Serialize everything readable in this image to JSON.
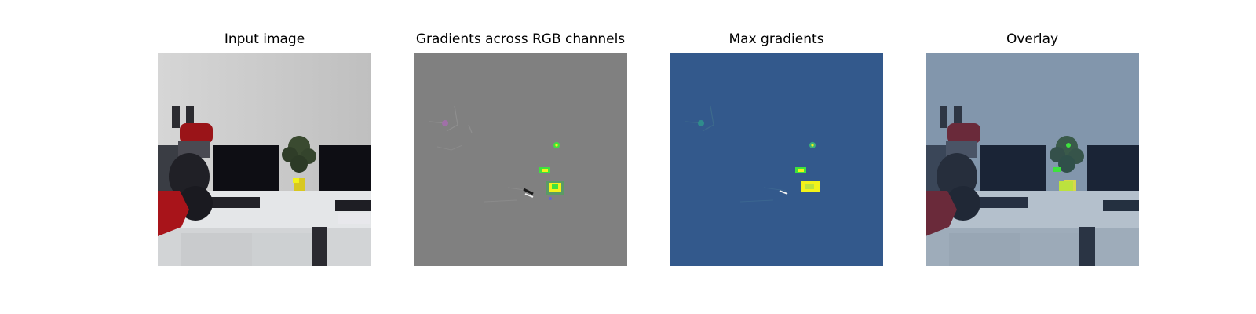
{
  "panels": [
    {
      "title": "Input image"
    },
    {
      "title": "Gradients across RGB channels"
    },
    {
      "title": "Max gradients"
    },
    {
      "title": "Overlay"
    }
  ],
  "colors": {
    "gradient_background": "#808080",
    "max_gradient_background": "#33598c",
    "highlight_yellow": "#f2f21a",
    "highlight_green": "#3ee23e",
    "robot_red": "#b4141c",
    "wall_gray": "#c8c8c8",
    "desk_white": "#e2e4e6"
  }
}
